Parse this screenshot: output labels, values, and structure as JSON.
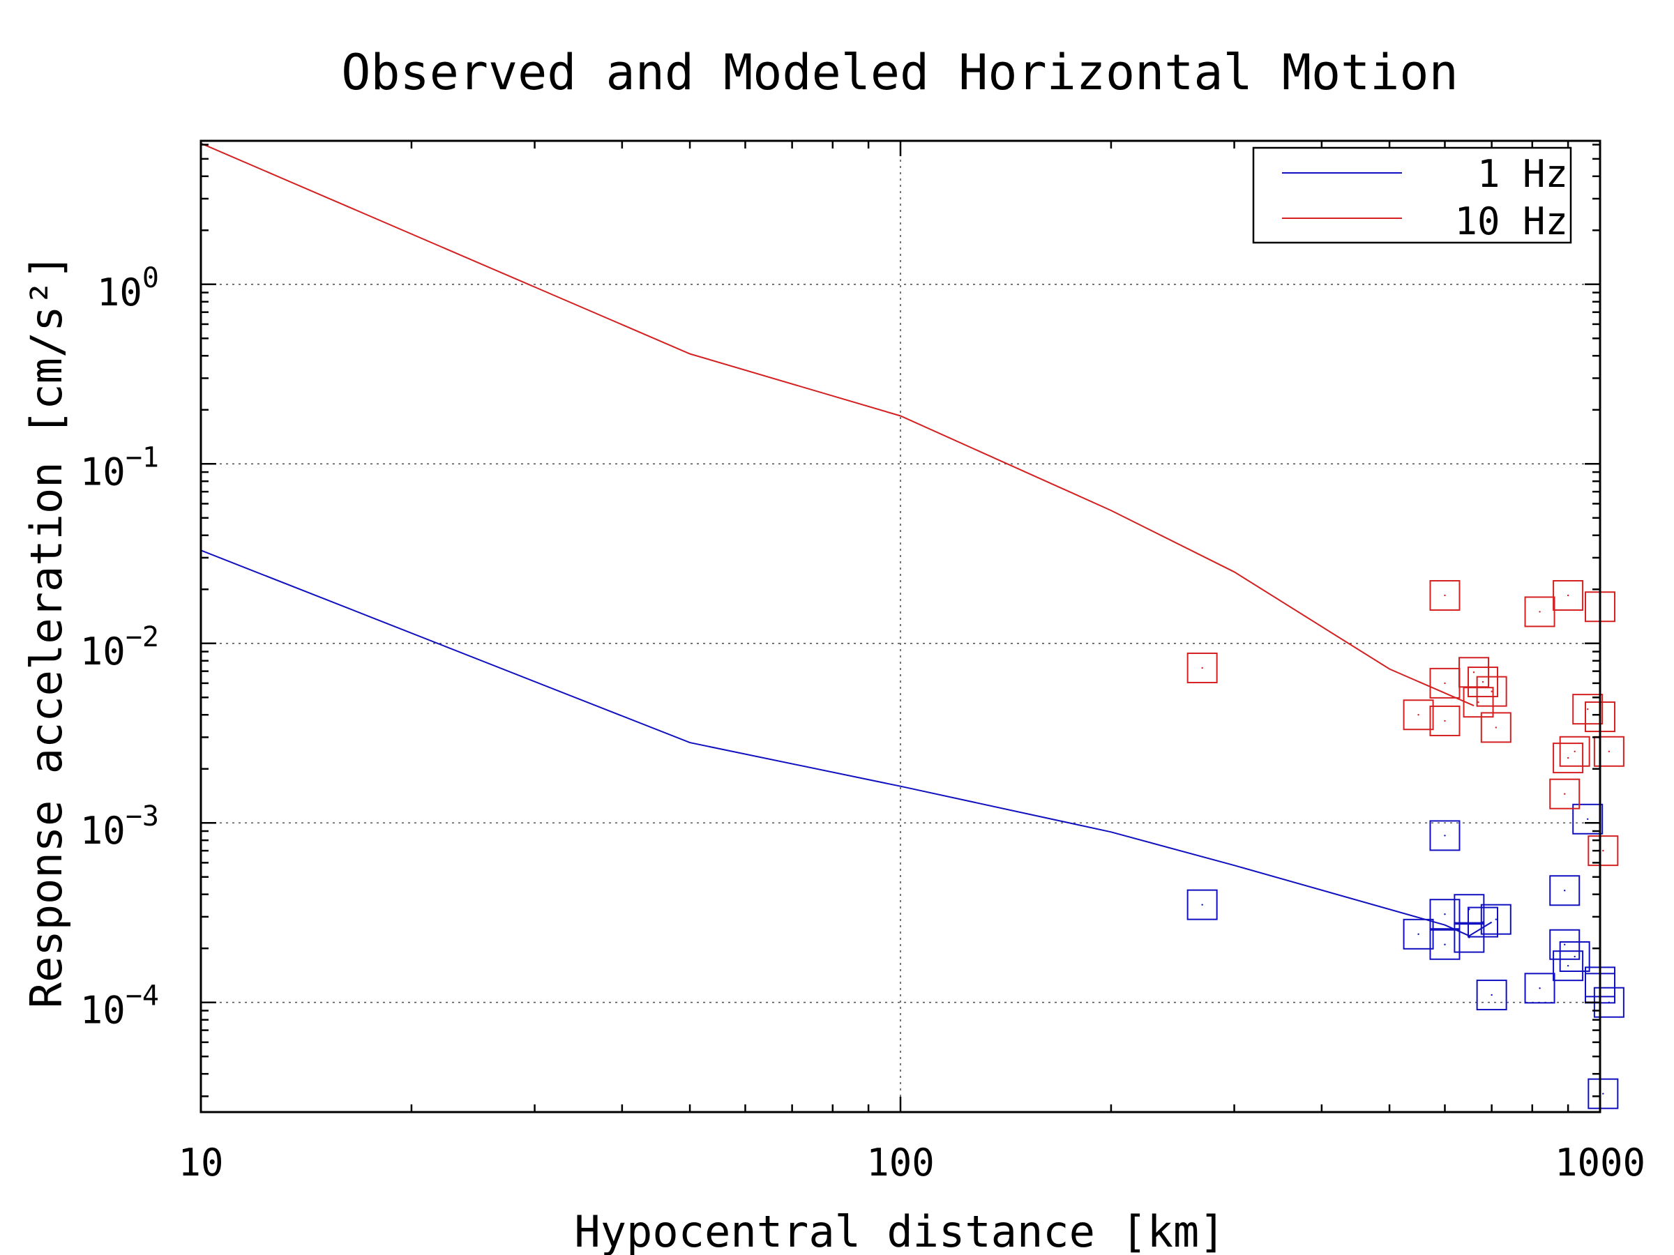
{
  "chart_data": {
    "type": "line",
    "title": "Observed and Modeled Horizontal Motion",
    "xlabel": "Hypocentral distance [km]",
    "ylabel": "Response acceleration [cm/s²]",
    "xscale": "log",
    "yscale": "log",
    "xlim": [
      10,
      1000
    ],
    "ylim": [
      2.45e-05,
      6.3
    ],
    "grid": true,
    "legend": "top-right",
    "x_ticks": [
      {
        "value": 10,
        "label": "10"
      },
      {
        "value": 100,
        "label": "100"
      },
      {
        "value": 1000,
        "label": "1000"
      }
    ],
    "y_ticks": [
      {
        "value": 1,
        "base": "10",
        "exp": "0"
      },
      {
        "value": 0.1,
        "base": "10",
        "exp": "−1"
      },
      {
        "value": 0.01,
        "base": "10",
        "exp": "−2"
      },
      {
        "value": 0.001,
        "base": "10",
        "exp": "−3"
      },
      {
        "value": 0.0001,
        "base": "10",
        "exp": "−4"
      }
    ],
    "series": [
      {
        "name": "1 Hz",
        "color": "#1010c0",
        "line": {
          "x": [
            10,
            50,
            100,
            200,
            300,
            600,
            650,
            700
          ],
          "y": [
            0.033,
            0.0028,
            0.0016,
            0.00089,
            0.00058,
            0.00027,
            0.000235,
            0.00028
          ]
        },
        "observed": {
          "x": [
            270,
            550,
            600,
            600,
            600,
            650,
            650,
            680,
            700,
            710,
            820,
            890,
            890,
            900,
            920,
            960,
            1000,
            1000,
            1010,
            1030
          ],
          "y": [
            0.00035,
            0.00024,
            0.00085,
            0.00031,
            0.00021,
            0.00023,
            0.00033,
            0.00028,
            0.00011,
            0.00029,
            0.00012,
            0.00042,
            0.00021,
            0.00016,
            0.00018,
            0.00105,
            0.00013,
            0.00012,
            3.1e-05,
            0.0001
          ]
        }
      },
      {
        "name": "10 Hz",
        "color": "#d42020",
        "line": {
          "x": [
            10,
            50,
            100,
            200,
            300,
            500,
            660
          ],
          "y": [
            6.1,
            0.41,
            0.185,
            0.055,
            0.025,
            0.0072,
            0.0045
          ]
        },
        "observed": {
          "x": [
            270,
            550,
            600,
            600,
            600,
            660,
            670,
            680,
            700,
            710,
            820,
            890,
            900,
            900,
            920,
            960,
            1000,
            1000,
            1010,
            1030
          ],
          "y": [
            0.0073,
            0.004,
            0.0185,
            0.006,
            0.0037,
            0.0069,
            0.0047,
            0.0061,
            0.0054,
            0.0034,
            0.015,
            0.00145,
            0.0185,
            0.0023,
            0.0025,
            0.0043,
            0.016,
            0.0039,
            0.0007,
            0.0025
          ]
        }
      }
    ]
  }
}
